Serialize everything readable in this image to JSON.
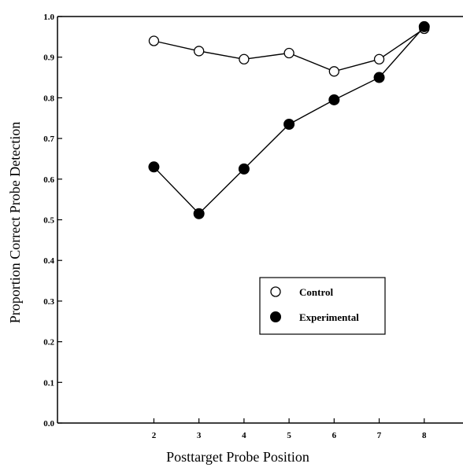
{
  "chart_data": {
    "type": "line",
    "xlabel": "Posttarget Probe Position",
    "ylabel": "Proportion Correct Probe Detection",
    "x": [
      2,
      3,
      4,
      5,
      6,
      7,
      8
    ],
    "x_ticks": [
      "2",
      "3",
      "4",
      "5",
      "6",
      "7",
      "8"
    ],
    "xlim": [
      0,
      9
    ],
    "ylim": [
      0.0,
      1.0
    ],
    "y_ticks": [
      "0.0",
      "0.1",
      "0.2",
      "0.3",
      "0.4",
      "0.5",
      "0.6",
      "0.7",
      "0.8",
      "0.9",
      "1.0"
    ],
    "grid": false,
    "legend_position": "center-right",
    "series": [
      {
        "name": "Control",
        "marker": "open-circle",
        "color": "#000000",
        "values": [
          0.94,
          0.915,
          0.895,
          0.91,
          0.865,
          0.895,
          0.97
        ]
      },
      {
        "name": "Experimental",
        "marker": "filled-circle",
        "color": "#000000",
        "values": [
          0.63,
          0.515,
          0.625,
          0.735,
          0.795,
          0.85,
          0.975
        ]
      }
    ]
  }
}
